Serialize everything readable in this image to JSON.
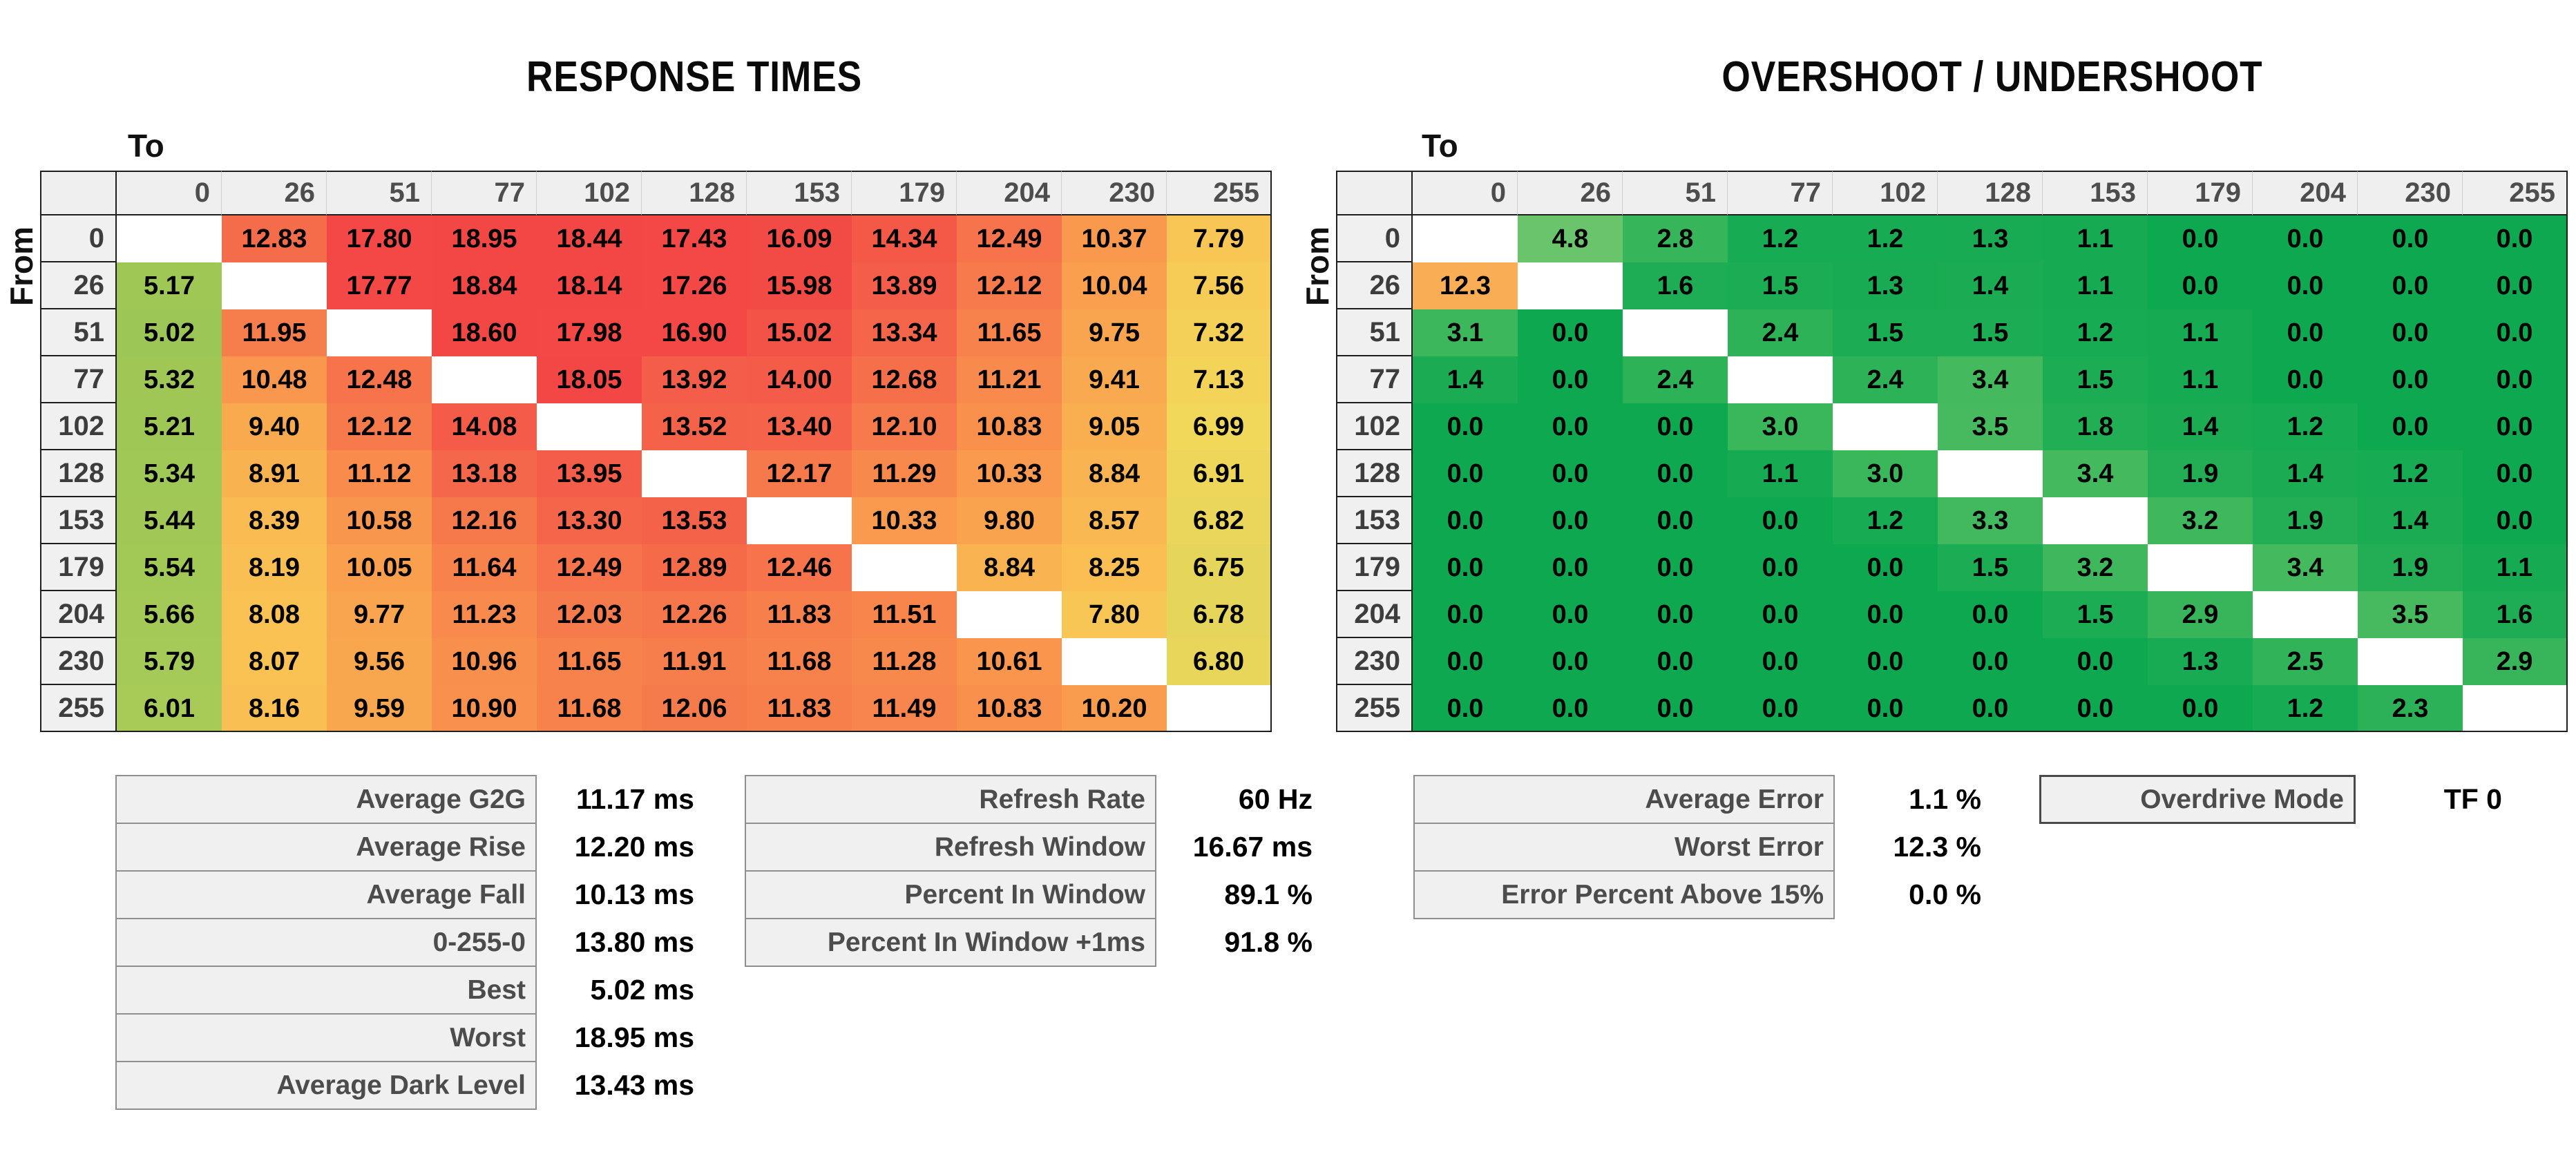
{
  "chart_data": [
    {
      "type": "heatmap",
      "title": "RESPONSE TIMES",
      "unit": "ms",
      "decimals": 2,
      "x_axis_label": "To",
      "y_axis_label": "From",
      "x_labels": [
        "0",
        "26",
        "51",
        "77",
        "102",
        "128",
        "153",
        "179",
        "204",
        "230",
        "255"
      ],
      "y_labels": [
        "0",
        "26",
        "51",
        "77",
        "102",
        "128",
        "153",
        "179",
        "204",
        "230",
        "255"
      ],
      "value_range": [
        5.02,
        18.95
      ],
      "values": [
        [
          null,
          12.83,
          17.8,
          18.95,
          18.44,
          17.43,
          16.09,
          14.34,
          12.49,
          10.37,
          7.79
        ],
        [
          5.17,
          null,
          17.77,
          18.84,
          18.14,
          17.26,
          15.98,
          13.89,
          12.12,
          10.04,
          7.56
        ],
        [
          5.02,
          11.95,
          null,
          18.6,
          17.98,
          16.9,
          15.02,
          13.34,
          11.65,
          9.75,
          7.32
        ],
        [
          5.32,
          10.48,
          12.48,
          null,
          18.05,
          13.92,
          14.0,
          12.68,
          11.21,
          9.41,
          7.13
        ],
        [
          5.21,
          9.4,
          12.12,
          14.08,
          null,
          13.52,
          13.4,
          12.1,
          10.83,
          9.05,
          6.99
        ],
        [
          5.34,
          8.91,
          11.12,
          13.18,
          13.95,
          null,
          12.17,
          11.29,
          10.33,
          8.84,
          6.91
        ],
        [
          5.44,
          8.39,
          10.58,
          12.16,
          13.3,
          13.53,
          null,
          10.33,
          9.8,
          8.57,
          6.82
        ],
        [
          5.54,
          8.19,
          10.05,
          11.64,
          12.49,
          12.89,
          12.46,
          null,
          8.84,
          8.25,
          6.75
        ],
        [
          5.66,
          8.08,
          9.77,
          11.23,
          12.03,
          12.26,
          11.83,
          11.51,
          null,
          7.8,
          6.78
        ],
        [
          5.79,
          8.07,
          9.56,
          10.96,
          11.65,
          11.91,
          11.68,
          11.28,
          10.61,
          null,
          6.8
        ],
        [
          6.01,
          8.16,
          9.59,
          10.9,
          11.68,
          12.06,
          11.83,
          11.49,
          10.83,
          10.2,
          null
        ]
      ],
      "color_stops": [
        [
          5.0,
          "#9cc655"
        ],
        [
          6.1,
          "#a9cb58"
        ],
        [
          6.6,
          "#ddd45c"
        ],
        [
          7.0,
          "#f2d75a"
        ],
        [
          8.0,
          "#fac253"
        ],
        [
          9.0,
          "#f9b050"
        ],
        [
          10.0,
          "#f9a04e"
        ],
        [
          11.0,
          "#f98e4d"
        ],
        [
          12.0,
          "#f67c4c"
        ],
        [
          13.0,
          "#f5694a"
        ],
        [
          14.0,
          "#f45c49"
        ],
        [
          15.0,
          "#f35247"
        ],
        [
          16.0,
          "#f24b46"
        ],
        [
          17.0,
          "#f34846"
        ],
        [
          19.0,
          "#f34745"
        ]
      ]
    },
    {
      "type": "heatmap",
      "title": "OVERSHOOT / UNDERSHOOT",
      "unit": "%",
      "decimals": 1,
      "x_axis_label": "To",
      "y_axis_label": "From",
      "x_labels": [
        "0",
        "26",
        "51",
        "77",
        "102",
        "128",
        "153",
        "179",
        "204",
        "230",
        "255"
      ],
      "y_labels": [
        "0",
        "26",
        "51",
        "77",
        "102",
        "128",
        "153",
        "179",
        "204",
        "230",
        "255"
      ],
      "value_range": [
        0.0,
        12.3
      ],
      "values": [
        [
          null,
          4.8,
          2.8,
          1.2,
          1.2,
          1.3,
          1.1,
          0.0,
          0.0,
          0.0,
          0.0
        ],
        [
          12.3,
          null,
          1.6,
          1.5,
          1.3,
          1.4,
          1.1,
          0.0,
          0.0,
          0.0,
          0.0
        ],
        [
          3.1,
          0.0,
          null,
          2.4,
          1.5,
          1.5,
          1.2,
          1.1,
          0.0,
          0.0,
          0.0
        ],
        [
          1.4,
          0.0,
          2.4,
          null,
          2.4,
          3.4,
          1.5,
          1.1,
          0.0,
          0.0,
          0.0
        ],
        [
          0.0,
          0.0,
          0.0,
          3.0,
          null,
          3.5,
          1.8,
          1.4,
          1.2,
          0.0,
          0.0
        ],
        [
          0.0,
          0.0,
          0.0,
          1.1,
          3.0,
          null,
          3.4,
          1.9,
          1.4,
          1.2,
          0.0
        ],
        [
          0.0,
          0.0,
          0.0,
          0.0,
          1.2,
          3.3,
          null,
          3.2,
          1.9,
          1.4,
          0.0
        ],
        [
          0.0,
          0.0,
          0.0,
          0.0,
          0.0,
          1.5,
          3.2,
          null,
          3.4,
          1.9,
          1.1
        ],
        [
          0.0,
          0.0,
          0.0,
          0.0,
          0.0,
          0.0,
          1.5,
          2.9,
          null,
          3.5,
          1.6
        ],
        [
          0.0,
          0.0,
          0.0,
          0.0,
          0.0,
          0.0,
          0.0,
          1.3,
          2.5,
          null,
          2.9
        ],
        [
          0.0,
          0.0,
          0.0,
          0.0,
          0.0,
          0.0,
          0.0,
          0.0,
          1.2,
          2.3,
          null
        ]
      ],
      "color_stops": [
        [
          0.0,
          "#0da850"
        ],
        [
          1.0,
          "#14aa52"
        ],
        [
          1.9,
          "#23ae55"
        ],
        [
          2.5,
          "#30b359"
        ],
        [
          3.0,
          "#3ab65b"
        ],
        [
          3.6,
          "#49bb60"
        ],
        [
          5.0,
          "#6ec56e"
        ],
        [
          8.0,
          "#c9cf60"
        ],
        [
          12.3,
          "#f9ae55"
        ],
        [
          15.0,
          "#f25046"
        ]
      ]
    }
  ],
  "summaries": {
    "response": [
      {
        "label": "Average G2G",
        "value": "11.17 ms"
      },
      {
        "label": "Average Rise",
        "value": "12.20 ms"
      },
      {
        "label": "Average Fall",
        "value": "10.13 ms"
      },
      {
        "label": "0-255-0",
        "value": "13.80 ms"
      },
      {
        "label": "Best",
        "value": "5.02 ms"
      },
      {
        "label": "Worst",
        "value": "18.95 ms"
      },
      {
        "label": "Average Dark Level",
        "value": "13.43 ms"
      }
    ],
    "refresh": [
      {
        "label": "Refresh Rate",
        "value": "60 Hz"
      },
      {
        "label": "Refresh Window",
        "value": "16.67 ms"
      },
      {
        "label": "Percent In Window",
        "value": "89.1 %"
      },
      {
        "label": "Percent In Window +1ms",
        "value": "91.8 %"
      }
    ],
    "error": [
      {
        "label": "Average Error",
        "value": "1.1 %"
      },
      {
        "label": "Worst Error",
        "value": "12.3 %"
      },
      {
        "label": "Error Percent Above 15%",
        "value": "0.0 %"
      }
    ],
    "overdrive": [
      {
        "label": "Overdrive Mode",
        "value": "TF 0"
      }
    ]
  },
  "colors": {
    "page_bg": "#ffffff",
    "header_bg": "#efefef",
    "row_label_bg": "#f0f0f0",
    "grid_border": "#1f1f1f",
    "stat_border": "#8f8f8f",
    "overdrive_border": "#4a4a4a",
    "diagonal_cell": "#ffffff"
  }
}
